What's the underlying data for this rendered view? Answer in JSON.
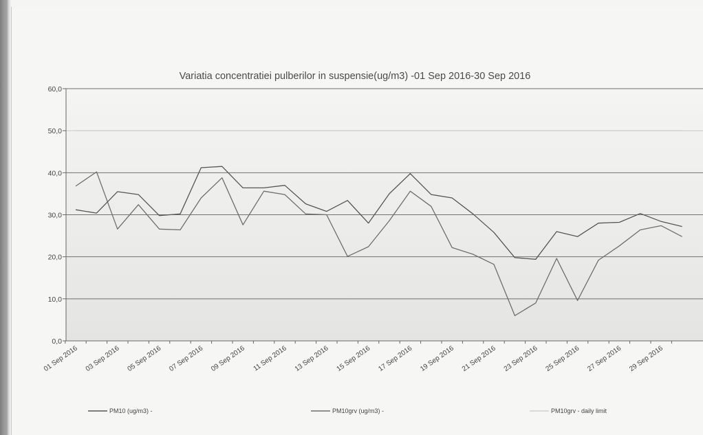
{
  "chart_data": {
    "type": "line",
    "title": "Variatia concentratiei pulberilor in suspensie(ug/m3) -01 Sep 2016-30 Sep 2016",
    "xlabel": "",
    "ylabel": "",
    "ylim": [
      0,
      60
    ],
    "yticks": [
      "0,0",
      "10,0",
      "20,0",
      "30,0",
      "40,0",
      "50,0",
      "60,0"
    ],
    "categories": [
      "01 Sep 2016",
      "02 Sep 2016",
      "03 Sep 2016",
      "04 Sep 2016",
      "05 Sep 2016",
      "06 Sep 2016",
      "07 Sep 2016",
      "08 Sep 2016",
      "09 Sep 2016",
      "10 Sep 2016",
      "11 Sep 2016",
      "12 Sep 2016",
      "13 Sep 2016",
      "14 Sep 2016",
      "15 Sep 2016",
      "16 Sep 2016",
      "17 Sep 2016",
      "18 Sep 2016",
      "19 Sep 2016",
      "20 Sep 2016",
      "21 Sep 2016",
      "22 Sep 2016",
      "23 Sep 2016",
      "24 Sep 2016",
      "25 Sep 2016",
      "26 Sep 2016",
      "27 Sep 2016",
      "28 Sep 2016",
      "29 Sep 2016",
      "30 Sep 2016"
    ],
    "xtick_labels": [
      "01 Sep 2016",
      "03 Sep 2016",
      "05 Sep 2016",
      "07 Sep 2016",
      "09 Sep 2016",
      "11 Sep 2016",
      "13 Sep 2016",
      "15 Sep 2016",
      "17 Sep 2016",
      "19 Sep 2016",
      "21 Sep 2016",
      "23 Sep 2016",
      "25 Sep 2016",
      "27 Sep 2016",
      "29 Sep 2016"
    ],
    "series": [
      {
        "name": "PM10 (ug/m3)  -",
        "color": "#555555",
        "values": [
          31.2,
          30.4,
          35.5,
          34.8,
          29.8,
          30.2,
          41.2,
          41.5,
          36.4,
          36.4,
          37.0,
          32.6,
          30.8,
          33.4,
          28.0,
          35.0,
          39.8,
          34.8,
          34.0,
          30.2,
          25.8,
          19.8,
          19.4,
          26.0,
          24.8,
          28.0,
          28.2,
          30.3,
          28.4,
          27.2
        ]
      },
      {
        "name": "PM10grv (ug/m3)  -",
        "color": "#6e6e6e",
        "values": [
          36.8,
          40.2,
          26.6,
          32.4,
          26.6,
          26.4,
          34.0,
          38.8,
          27.6,
          35.6,
          34.8,
          30.2,
          30.0,
          20.1,
          22.4,
          28.6,
          35.6,
          32.0,
          22.2,
          20.6,
          18.2,
          6.0,
          9.0,
          19.6,
          9.6,
          19.2,
          22.6,
          26.4,
          27.4,
          24.8
        ]
      },
      {
        "name": "PM10grv - daily limit",
        "color": "#cfcfcf",
        "values": [
          50,
          50,
          50,
          50,
          50,
          50,
          50,
          50,
          50,
          50,
          50,
          50,
          50,
          50,
          50,
          50,
          50,
          50,
          50,
          50,
          50,
          50,
          50,
          50,
          50,
          50,
          50,
          50,
          50,
          50
        ]
      }
    ],
    "grid": true,
    "legend_position": "bottom"
  }
}
